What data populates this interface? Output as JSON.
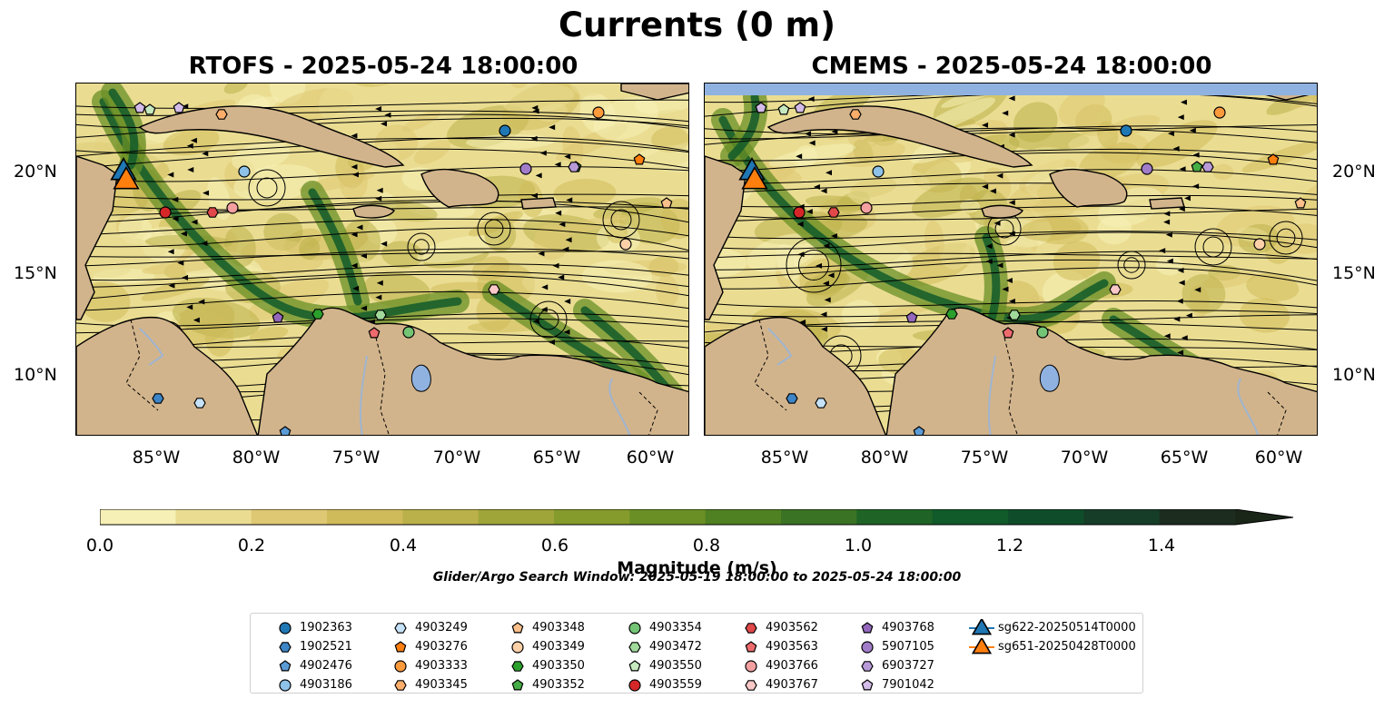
{
  "figure": {
    "title": "Currents (0 m)",
    "panels": [
      {
        "id": "rtofs",
        "title": "RTOFS - 2025-05-24 18:00:00"
      },
      {
        "id": "cmems",
        "title": "CMEMS - 2025-05-24 18:00:00"
      }
    ],
    "lat_labels": [
      "20°N",
      "15°N",
      "10°N"
    ],
    "lon_labels": [
      "85°W",
      "80°W",
      "75°W",
      "70°W",
      "65°W",
      "60°W"
    ],
    "colorbar": {
      "label": "Magnitude (m/s)",
      "ticks": [
        "0.0",
        "0.2",
        "0.4",
        "0.6",
        "0.8",
        "1.0",
        "1.2",
        "1.4"
      ],
      "colors": [
        "#f6f0b6",
        "#eadd92",
        "#dfc873",
        "#d0bb5a",
        "#bbb14a",
        "#a0a53a",
        "#859b2c",
        "#6a8f25",
        "#4f8022",
        "#3a7324",
        "#1f6426",
        "#115a2a",
        "#0f4d2a",
        "#163d27",
        "#1c2d1f",
        "#1a2618"
      ]
    },
    "search_window": "Glider/Argo Search Window: 2025-05-19 18:00:00 to 2025-05-24 18:00:00"
  },
  "legend": [
    {
      "label": "1902363",
      "marker": "circle",
      "color": "#1f77b4"
    },
    {
      "label": "1902521",
      "marker": "hexagon",
      "color": "#3d85c6"
    },
    {
      "label": "4902476",
      "marker": "pentagon",
      "color": "#5b9bd5"
    },
    {
      "label": "4903186",
      "marker": "circle",
      "color": "#8ec2e8"
    },
    {
      "label": "4903249",
      "marker": "hexagon",
      "color": "#c6e2f7"
    },
    {
      "label": "4903276",
      "marker": "pentagon",
      "color": "#ff7f0e"
    },
    {
      "label": "4903333",
      "marker": "circle",
      "color": "#fd9a3c"
    },
    {
      "label": "4903345",
      "marker": "hexagon",
      "color": "#fdae6b"
    },
    {
      "label": "4903348",
      "marker": "pentagon",
      "color": "#fdc08a"
    },
    {
      "label": "4903349",
      "marker": "circle",
      "color": "#fdd0a8"
    },
    {
      "label": "4903350",
      "marker": "hexagon",
      "color": "#2ca02c"
    },
    {
      "label": "4903352",
      "marker": "pentagon",
      "color": "#45ad45"
    },
    {
      "label": "4903354",
      "marker": "circle",
      "color": "#74c476"
    },
    {
      "label": "4903472",
      "marker": "hexagon",
      "color": "#a1d99b"
    },
    {
      "label": "4903550",
      "marker": "pentagon",
      "color": "#c7e9c0"
    },
    {
      "label": "4903559",
      "marker": "circle",
      "color": "#d62728"
    },
    {
      "label": "4903562",
      "marker": "hexagon",
      "color": "#e0484a"
    },
    {
      "label": "4903563",
      "marker": "pentagon",
      "color": "#ee6b6d"
    },
    {
      "label": "4903766",
      "marker": "circle",
      "color": "#f4a0a0"
    },
    {
      "label": "4903767",
      "marker": "hexagon",
      "color": "#fbc8c8"
    },
    {
      "label": "4903768",
      "marker": "pentagon",
      "color": "#9467bd"
    },
    {
      "label": "5907105",
      "marker": "circle",
      "color": "#a17cc9"
    },
    {
      "label": "6903727",
      "marker": "hexagon",
      "color": "#b89ad8"
    },
    {
      "label": "7901042",
      "marker": "pentagon",
      "color": "#d4bce9"
    },
    {
      "label": "sg622-20250514T0000",
      "marker": "triangle",
      "color": "#1f77b4"
    },
    {
      "label": "sg651-20250428T0000",
      "marker": "triangle",
      "color": "#ff7f0e"
    }
  ],
  "map": {
    "land_color": "#d2b48c",
    "water_feature_color": "#8fb2e0",
    "river_color": "#9fb5d0",
    "streamline_color": "#000000"
  }
}
